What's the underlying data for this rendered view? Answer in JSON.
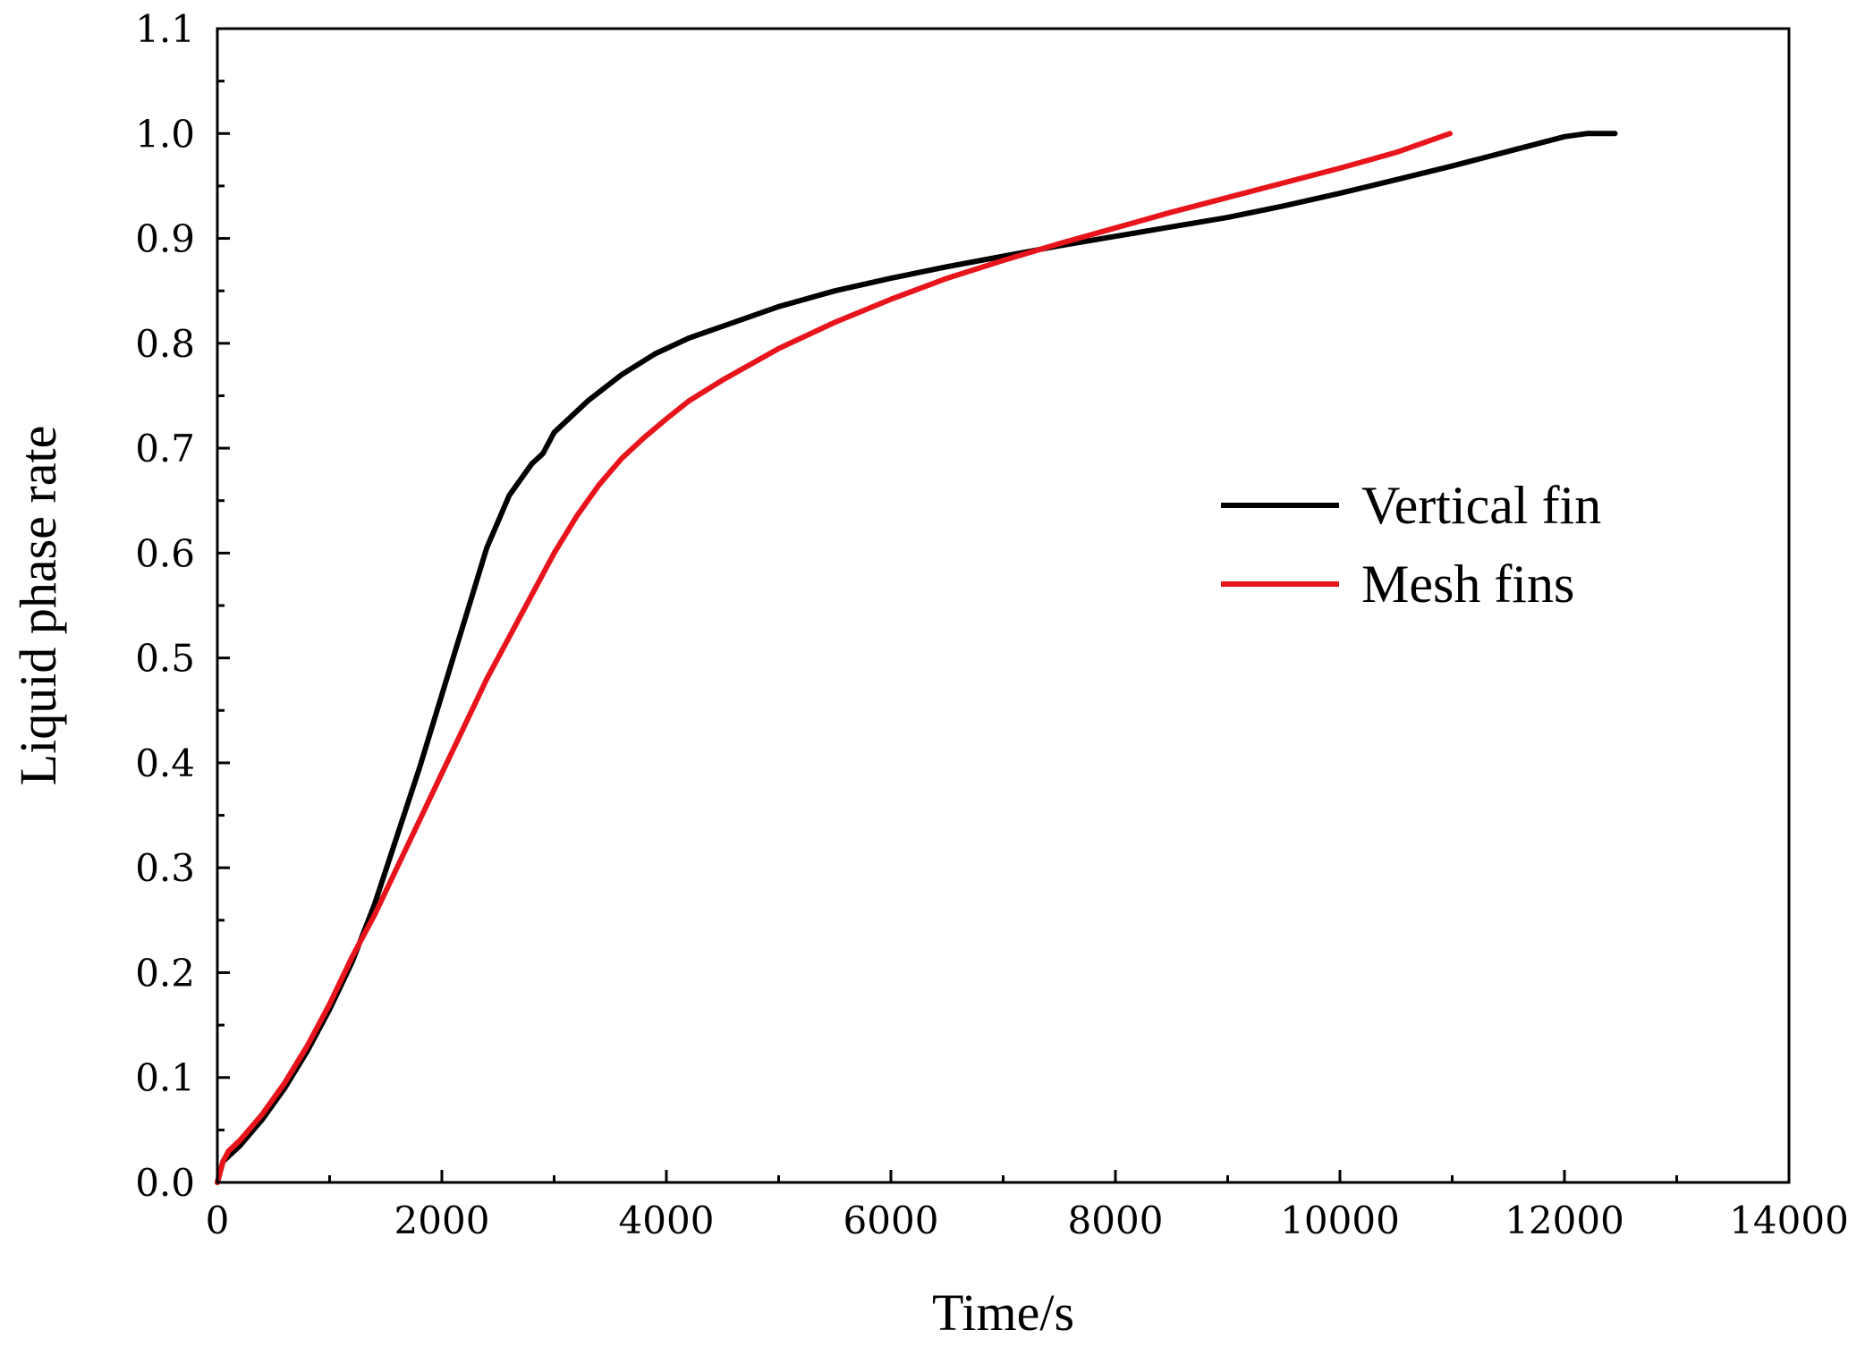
{
  "chart_data": {
    "type": "line",
    "title": "",
    "xlabel": "Time/s",
    "ylabel": "Liquid phase rate",
    "xlim": [
      0,
      14000
    ],
    "ylim": [
      0.0,
      1.1
    ],
    "x_ticks": [
      0,
      2000,
      4000,
      6000,
      8000,
      10000,
      12000,
      14000
    ],
    "x_tick_labels": [
      "0",
      "2000",
      "4000",
      "6000",
      "8000",
      "10000",
      "12000",
      "14000"
    ],
    "y_ticks": [
      0.0,
      0.1,
      0.2,
      0.3,
      0.4,
      0.5,
      0.6,
      0.7,
      0.8,
      0.9,
      1.0,
      1.1
    ],
    "y_tick_labels": [
      "0.0",
      "0.1",
      "0.2",
      "0.3",
      "0.4",
      "0.5",
      "0.6",
      "0.7",
      "0.8",
      "0.9",
      "1.0",
      "1.1"
    ],
    "grid": false,
    "legend_position": "right-middle",
    "series": [
      {
        "name": "Vertical fin",
        "color": "#000000",
        "x": [
          0,
          50,
          100,
          200,
          400,
          600,
          800,
          1000,
          1200,
          1400,
          1600,
          1800,
          2000,
          2200,
          2400,
          2600,
          2800,
          2900,
          3000,
          3100,
          3300,
          3600,
          3900,
          4200,
          4600,
          5000,
          5500,
          6000,
          6500,
          7000,
          7500,
          8000,
          8500,
          9000,
          9500,
          10000,
          10500,
          11000,
          11500,
          12000,
          12200,
          12450
        ],
        "y": [
          0.0,
          0.02,
          0.025,
          0.035,
          0.06,
          0.09,
          0.125,
          0.165,
          0.21,
          0.265,
          0.33,
          0.395,
          0.465,
          0.535,
          0.605,
          0.655,
          0.685,
          0.695,
          0.715,
          0.725,
          0.745,
          0.77,
          0.79,
          0.805,
          0.82,
          0.835,
          0.85,
          0.862,
          0.873,
          0.883,
          0.893,
          0.902,
          0.911,
          0.92,
          0.931,
          0.943,
          0.956,
          0.969,
          0.983,
          0.997,
          1.0,
          1.0
        ]
      },
      {
        "name": "Mesh fins",
        "color": "#e8141b",
        "x": [
          0,
          50,
          100,
          200,
          400,
          600,
          800,
          1000,
          1200,
          1400,
          1600,
          1800,
          2000,
          2200,
          2400,
          2600,
          2800,
          3000,
          3200,
          3400,
          3600,
          3800,
          4000,
          4200,
          4500,
          5000,
          5500,
          6000,
          6500,
          7000,
          7500,
          8000,
          8500,
          9000,
          9500,
          10000,
          10500,
          10980
        ],
        "y": [
          0.0,
          0.02,
          0.03,
          0.04,
          0.065,
          0.095,
          0.13,
          0.17,
          0.215,
          0.255,
          0.3,
          0.345,
          0.39,
          0.435,
          0.48,
          0.52,
          0.56,
          0.6,
          0.635,
          0.665,
          0.69,
          0.71,
          0.728,
          0.745,
          0.765,
          0.795,
          0.82,
          0.842,
          0.862,
          0.879,
          0.895,
          0.91,
          0.925,
          0.939,
          0.953,
          0.967,
          0.982,
          1.0
        ]
      }
    ]
  }
}
